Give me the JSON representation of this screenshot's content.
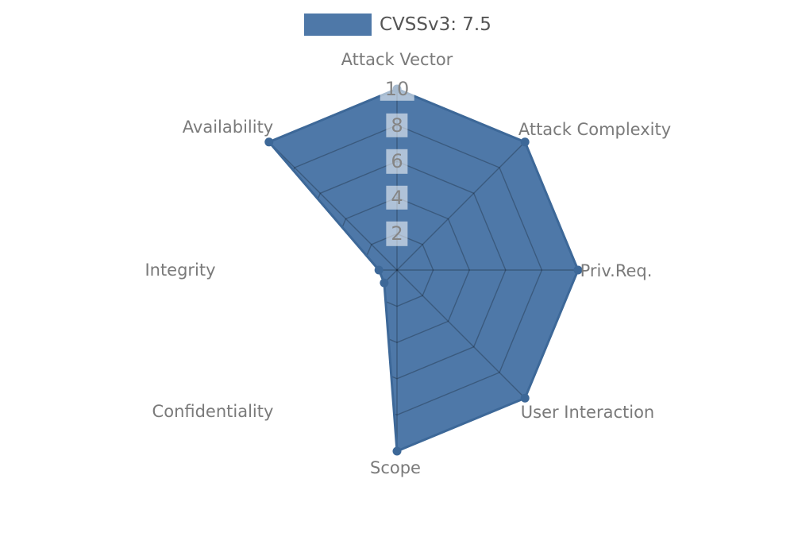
{
  "chart_data": {
    "type": "radar",
    "title": "",
    "legend_label": "CVSSv3: 7.5",
    "legend_position": "top-center",
    "categories": [
      "Attack Vector",
      "Attack Complexity",
      "Priv.Req.",
      "User Interaction",
      "Scope",
      "Confidentiality",
      "Integrity",
      "Availability"
    ],
    "series": [
      {
        "name": "CVSSv3: 7.5",
        "values": [
          10,
          10,
          10,
          10,
          10,
          1,
          1,
          10
        ]
      }
    ],
    "radial_ticks": [
      2,
      4,
      6,
      8,
      10
    ],
    "range": [
      0,
      10
    ],
    "grid": "on",
    "fill_color": "#4e78a8",
    "line_color": "#3d6898",
    "grid_color": "rgba(0,0,0,0.25)",
    "tick_box_color": "rgba(255,255,255,0.55)",
    "axis_label_color": "#7a7a7a",
    "legend_text_color": "#555555",
    "background_color": "#ffffff"
  }
}
